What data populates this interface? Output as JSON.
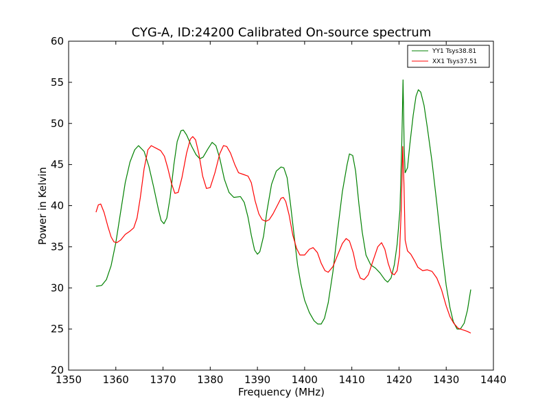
{
  "chart_data": {
    "type": "line",
    "title": "CYG-A, ID:24200 Calibrated On-source spectrum",
    "xlabel": "Frequency (MHz)",
    "ylabel": "Power in Kelvin",
    "xlim": [
      1350,
      1440
    ],
    "ylim": [
      20,
      60
    ],
    "xticks": [
      1350,
      1360,
      1370,
      1380,
      1390,
      1400,
      1410,
      1420,
      1430,
      1440
    ],
    "yticks": [
      20,
      25,
      30,
      35,
      40,
      45,
      50,
      55,
      60
    ],
    "grid": false,
    "legend_position": "top-right",
    "series": [
      {
        "name": "YY1 Tsys38.81",
        "color": "#008000",
        "points": [
          [
            1355.8,
            30.2
          ],
          [
            1357.0,
            30.3
          ],
          [
            1358.0,
            31.0
          ],
          [
            1359.0,
            32.7
          ],
          [
            1360.0,
            35.5
          ],
          [
            1361.0,
            39.2
          ],
          [
            1362.0,
            42.8
          ],
          [
            1363.0,
            45.3
          ],
          [
            1364.0,
            46.8
          ],
          [
            1364.8,
            47.3
          ],
          [
            1366.0,
            46.6
          ],
          [
            1367.0,
            44.8
          ],
          [
            1368.0,
            42.3
          ],
          [
            1369.0,
            39.6
          ],
          [
            1369.6,
            38.2
          ],
          [
            1370.2,
            37.8
          ],
          [
            1370.8,
            38.5
          ],
          [
            1371.5,
            41.0
          ],
          [
            1372.3,
            45.0
          ],
          [
            1373.0,
            47.8
          ],
          [
            1373.8,
            49.1
          ],
          [
            1374.3,
            49.2
          ],
          [
            1375.0,
            48.6
          ],
          [
            1376.0,
            47.3
          ],
          [
            1377.0,
            46.2
          ],
          [
            1377.8,
            45.7
          ],
          [
            1378.5,
            45.9
          ],
          [
            1379.5,
            46.9
          ],
          [
            1380.4,
            47.7
          ],
          [
            1381.2,
            47.3
          ],
          [
            1382.0,
            45.8
          ],
          [
            1383.0,
            43.2
          ],
          [
            1384.0,
            41.6
          ],
          [
            1385.0,
            41.0
          ],
          [
            1386.4,
            41.1
          ],
          [
            1387.2,
            40.4
          ],
          [
            1388.0,
            38.6
          ],
          [
            1388.7,
            36.4
          ],
          [
            1389.4,
            34.6
          ],
          [
            1390.0,
            34.1
          ],
          [
            1390.5,
            34.4
          ],
          [
            1391.3,
            36.3
          ],
          [
            1392.0,
            39.3
          ],
          [
            1393.0,
            42.6
          ],
          [
            1394.0,
            44.2
          ],
          [
            1395.0,
            44.7
          ],
          [
            1395.6,
            44.6
          ],
          [
            1396.3,
            43.4
          ],
          [
            1397.0,
            40.2
          ],
          [
            1397.8,
            36.2
          ],
          [
            1398.5,
            32.8
          ],
          [
            1399.2,
            30.5
          ],
          [
            1400.0,
            28.5
          ],
          [
            1401.0,
            27.0
          ],
          [
            1402.0,
            26.0
          ],
          [
            1402.8,
            25.6
          ],
          [
            1403.5,
            25.6
          ],
          [
            1404.2,
            26.3
          ],
          [
            1405.0,
            28.2
          ],
          [
            1406.0,
            32.0
          ],
          [
            1407.0,
            37.0
          ],
          [
            1408.0,
            41.7
          ],
          [
            1409.0,
            45.0
          ],
          [
            1409.5,
            46.3
          ],
          [
            1410.2,
            46.1
          ],
          [
            1410.8,
            44.2
          ],
          [
            1411.5,
            40.2
          ],
          [
            1412.2,
            36.8
          ],
          [
            1413.0,
            34.0
          ],
          [
            1414.0,
            32.8
          ],
          [
            1415.0,
            32.4
          ],
          [
            1416.0,
            31.8
          ],
          [
            1417.0,
            31.0
          ],
          [
            1417.6,
            30.7
          ],
          [
            1418.3,
            31.2
          ],
          [
            1419.0,
            32.8
          ],
          [
            1419.6,
            35.3
          ],
          [
            1420.2,
            39.5
          ],
          [
            1420.6,
            48.0
          ],
          [
            1420.85,
            55.3
          ],
          [
            1421.1,
            47.0
          ],
          [
            1421.3,
            44.0
          ],
          [
            1421.8,
            44.6
          ],
          [
            1422.3,
            47.5
          ],
          [
            1423.0,
            51.0
          ],
          [
            1423.6,
            53.3
          ],
          [
            1424.1,
            54.1
          ],
          [
            1424.6,
            53.8
          ],
          [
            1425.3,
            52.2
          ],
          [
            1426.0,
            49.5
          ],
          [
            1427.0,
            45.3
          ],
          [
            1428.0,
            40.3
          ],
          [
            1429.0,
            35.0
          ],
          [
            1430.0,
            30.3
          ],
          [
            1430.8,
            27.6
          ],
          [
            1431.5,
            25.9
          ],
          [
            1432.3,
            25.0
          ],
          [
            1433.0,
            25.0
          ],
          [
            1433.8,
            25.7
          ],
          [
            1434.5,
            27.3
          ],
          [
            1435.2,
            29.8
          ]
        ]
      },
      {
        "name": "XX1 Tsys37.51",
        "color": "#ff0000",
        "points": [
          [
            1355.8,
            39.2
          ],
          [
            1356.3,
            40.1
          ],
          [
            1356.8,
            40.2
          ],
          [
            1357.5,
            39.2
          ],
          [
            1358.3,
            37.5
          ],
          [
            1359.0,
            36.2
          ],
          [
            1359.6,
            35.6
          ],
          [
            1360.2,
            35.5
          ],
          [
            1361.0,
            35.8
          ],
          [
            1362.0,
            36.5
          ],
          [
            1363.0,
            36.9
          ],
          [
            1363.8,
            37.3
          ],
          [
            1364.5,
            38.5
          ],
          [
            1365.2,
            41.0
          ],
          [
            1366.0,
            44.5
          ],
          [
            1366.8,
            46.8
          ],
          [
            1367.5,
            47.3
          ],
          [
            1368.5,
            47.0
          ],
          [
            1369.5,
            46.7
          ],
          [
            1370.3,
            46.0
          ],
          [
            1371.0,
            44.6
          ],
          [
            1371.8,
            42.7
          ],
          [
            1372.5,
            41.5
          ],
          [
            1373.2,
            41.6
          ],
          [
            1374.0,
            43.4
          ],
          [
            1375.0,
            46.4
          ],
          [
            1375.8,
            48.1
          ],
          [
            1376.3,
            48.4
          ],
          [
            1376.9,
            48.0
          ],
          [
            1377.6,
            46.3
          ],
          [
            1378.4,
            43.6
          ],
          [
            1379.2,
            42.1
          ],
          [
            1380.0,
            42.2
          ],
          [
            1381.0,
            44.0
          ],
          [
            1382.0,
            46.3
          ],
          [
            1382.8,
            47.3
          ],
          [
            1383.5,
            47.2
          ],
          [
            1384.3,
            46.4
          ],
          [
            1385.2,
            45.0
          ],
          [
            1386.0,
            44.0
          ],
          [
            1387.0,
            43.8
          ],
          [
            1388.0,
            43.6
          ],
          [
            1388.7,
            42.8
          ],
          [
            1389.5,
            40.6
          ],
          [
            1390.3,
            39.0
          ],
          [
            1391.0,
            38.3
          ],
          [
            1391.8,
            38.1
          ],
          [
            1392.5,
            38.3
          ],
          [
            1393.3,
            39.0
          ],
          [
            1394.2,
            40.0
          ],
          [
            1395.0,
            40.9
          ],
          [
            1395.5,
            41.0
          ],
          [
            1396.0,
            40.5
          ],
          [
            1396.7,
            38.9
          ],
          [
            1397.5,
            36.4
          ],
          [
            1398.3,
            34.8
          ],
          [
            1399.0,
            34.0
          ],
          [
            1400.0,
            34.0
          ],
          [
            1401.0,
            34.7
          ],
          [
            1401.8,
            34.9
          ],
          [
            1402.7,
            34.3
          ],
          [
            1403.5,
            33.0
          ],
          [
            1404.3,
            32.1
          ],
          [
            1405.0,
            31.9
          ],
          [
            1406.0,
            32.6
          ],
          [
            1407.0,
            34.0
          ],
          [
            1408.0,
            35.4
          ],
          [
            1408.8,
            36.0
          ],
          [
            1409.5,
            35.7
          ],
          [
            1410.3,
            34.3
          ],
          [
            1411.0,
            32.4
          ],
          [
            1411.8,
            31.2
          ],
          [
            1412.6,
            31.0
          ],
          [
            1413.5,
            31.6
          ],
          [
            1414.5,
            33.3
          ],
          [
            1415.5,
            35.0
          ],
          [
            1416.3,
            35.5
          ],
          [
            1417.0,
            34.7
          ],
          [
            1417.7,
            33.0
          ],
          [
            1418.4,
            31.8
          ],
          [
            1419.0,
            31.6
          ],
          [
            1419.6,
            32.1
          ],
          [
            1420.1,
            34.0
          ],
          [
            1420.5,
            40.0
          ],
          [
            1420.8,
            47.2
          ],
          [
            1421.05,
            42.5
          ],
          [
            1421.3,
            35.8
          ],
          [
            1421.8,
            34.5
          ],
          [
            1422.5,
            34.1
          ],
          [
            1423.3,
            33.3
          ],
          [
            1424.0,
            32.5
          ],
          [
            1425.0,
            32.1
          ],
          [
            1426.0,
            32.2
          ],
          [
            1427.0,
            32.0
          ],
          [
            1428.0,
            31.2
          ],
          [
            1429.0,
            29.8
          ],
          [
            1430.0,
            27.8
          ],
          [
            1430.8,
            26.5
          ],
          [
            1431.6,
            25.7
          ],
          [
            1432.5,
            25.1
          ],
          [
            1433.5,
            24.9
          ],
          [
            1434.5,
            24.7
          ],
          [
            1435.2,
            24.5
          ]
        ]
      }
    ]
  }
}
